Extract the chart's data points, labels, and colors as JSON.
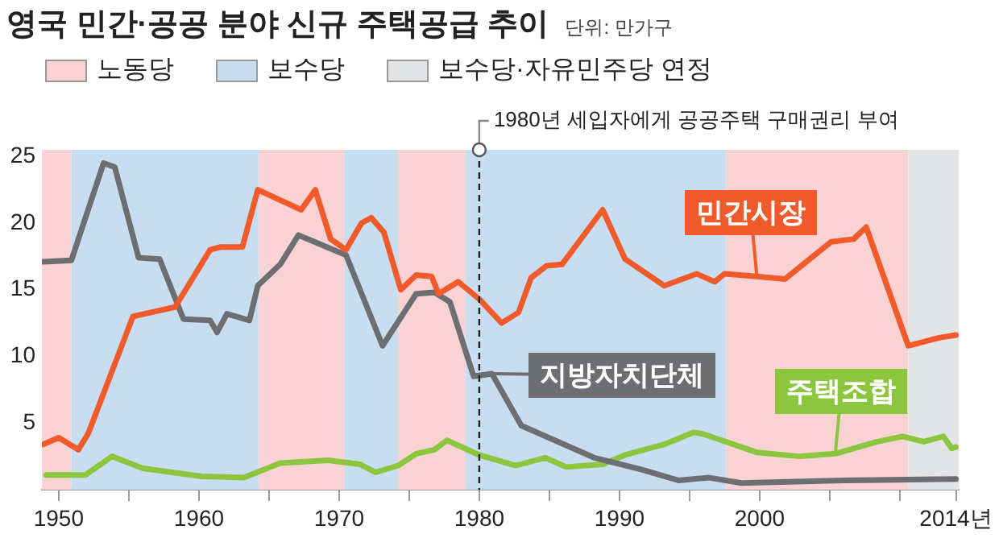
{
  "chart_data": {
    "type": "line",
    "title": "영국 민간·공공 분야 신규 주택공급 추이",
    "subtitle": "단위: 만가구",
    "legend": "top left",
    "grid": false,
    "marker": "none",
    "line_style": "solid",
    "xlim": [
      1948.8,
      2014.2
    ],
    "xticks": [
      1950,
      {
        "value": 1955,
        "label": null
      },
      1960,
      {
        "value": 1965,
        "label": null
      },
      1970,
      {
        "value": 1975,
        "label": null
      },
      1980,
      {
        "value": 1985,
        "label": null
      },
      1990,
      {
        "value": 1995,
        "label": null
      },
      2000,
      {
        "value": 2005,
        "label": null
      },
      {
        "value": 2010,
        "label": null
      },
      {
        "value": 2014,
        "label": "2014년"
      }
    ],
    "ylim": [
      0,
      25.5
    ],
    "yticks": [
      5,
      10,
      15,
      20,
      25
    ],
    "bands": [
      {
        "axis": "x",
        "from": 1948.8,
        "to": 1950.9,
        "label": "노동당",
        "color": "#f9d3d3"
      },
      {
        "axis": "x",
        "from": 1950.9,
        "to": 1964.3,
        "label": "보수당",
        "color": "#c9ddf1"
      },
      {
        "axis": "x",
        "from": 1964.3,
        "to": 1970.4,
        "color": "#f9d3d3"
      },
      {
        "axis": "x",
        "from": 1970.4,
        "to": 1974.2,
        "color": "#c9ddf1"
      },
      {
        "axis": "x",
        "from": 1974.2,
        "to": 1979,
        "color": "#f9d3d3"
      },
      {
        "axis": "x",
        "from": 1979,
        "to": 1997.6,
        "color": "#c9ddf1"
      },
      {
        "axis": "x",
        "from": 1997.6,
        "to": 2010.6,
        "color": "#f9d3d3"
      },
      {
        "axis": "x",
        "from": 2010.6,
        "to": 2014.2,
        "label": "보수당·자유민주당 연정",
        "color": "#e3e4e5"
      }
    ],
    "ref_lines": [
      {
        "axis": "x",
        "value": 1980,
        "label": "1980년 세입자에게 공공주택 구매권리 부여",
        "color": "#222222",
        "line_style": "dashed"
      }
    ],
    "series": [
      {
        "name": "민간시장",
        "color": "#f15a2b",
        "x": [
          1948.9,
          1950,
          1951.4,
          1952.1,
          1955.3,
          1958.3,
          1960.8,
          1961.5,
          1963.1,
          1964.2,
          1967.3,
          1968.3,
          1969.4,
          1970.5,
          1971.6,
          1972.3,
          1973.2,
          1974.4,
          1975.5,
          1976.6,
          1977.1,
          1978.5,
          1980,
          1981.6,
          1982.8,
          1983.7,
          1984.8,
          1985.9,
          1988.8,
          1990.4,
          1993.2,
          1995.5,
          1996.8,
          1997.5,
          1999.8,
          2001.8,
          2005.1,
          2006.7,
          2007.6,
          2010.6,
          2012.8,
          2014
        ],
        "values": [
          3.4,
          3.9,
          3.0,
          4.2,
          13.0,
          13.7,
          18.0,
          18.2,
          18.2,
          22.5,
          21.0,
          22.5,
          18.8,
          18.0,
          20.0,
          20.4,
          19.3,
          15.0,
          16.1,
          16.0,
          14.7,
          15.6,
          14.3,
          12.5,
          13.3,
          15.9,
          16.8,
          16.9,
          21.0,
          17.3,
          15.3,
          16.2,
          15.6,
          16.2,
          16.0,
          15.8,
          18.6,
          18.8,
          19.7,
          10.8,
          11.4,
          11.6
        ]
      },
      {
        "name": "지방자치단체",
        "color": "#6d6e71",
        "x": [
          1948.9,
          1950.9,
          1953.2,
          1954,
          1955.7,
          1957.2,
          1958.9,
          1960.8,
          1961.3,
          1962,
          1963.6,
          1964.2,
          1965.8,
          1967.1,
          1970.5,
          1973.1,
          1975.5,
          1976.8,
          1977.9,
          1979.6,
          1980.9,
          1983,
          1988.2,
          1991.6,
          1994.2,
          1996.4,
          1998.7,
          2006.1,
          2014
        ],
        "values": [
          17.1,
          17.2,
          24.5,
          24.2,
          17.4,
          17.3,
          12.8,
          12.7,
          11.8,
          13.2,
          12.7,
          15.3,
          16.9,
          19.1,
          17.6,
          10.8,
          14.7,
          14.8,
          14.1,
          8.5,
          8.7,
          4.8,
          2.4,
          1.5,
          0.7,
          0.9,
          0.5,
          0.7,
          0.8
        ]
      },
      {
        "name": "주택조합",
        "color": "#8cc63f",
        "x": [
          1949.1,
          1951.9,
          1953.8,
          1956,
          1960.2,
          1963.2,
          1965.8,
          1969.2,
          1971.5,
          1972.6,
          1974.2,
          1975.5,
          1976.8,
          1977.7,
          1980,
          1982.6,
          1984.7,
          1986.2,
          1988.8,
          1990.4,
          1993.2,
          1995.3,
          1995.9,
          1999.8,
          2002.8,
          2005.4,
          2008.4,
          2010.2,
          2011.7,
          2013.1,
          2013.7,
          2014
        ],
        "values": [
          1.1,
          1.1,
          2.5,
          1.6,
          1.0,
          0.9,
          2.0,
          2.2,
          1.9,
          1.3,
          1.8,
          2.7,
          3.0,
          3.7,
          2.6,
          1.8,
          2.4,
          1.7,
          1.9,
          2.6,
          3.4,
          4.3,
          4.2,
          2.8,
          2.5,
          2.7,
          3.6,
          4.0,
          3.6,
          4.0,
          3.1,
          3.2
        ]
      }
    ]
  }
}
